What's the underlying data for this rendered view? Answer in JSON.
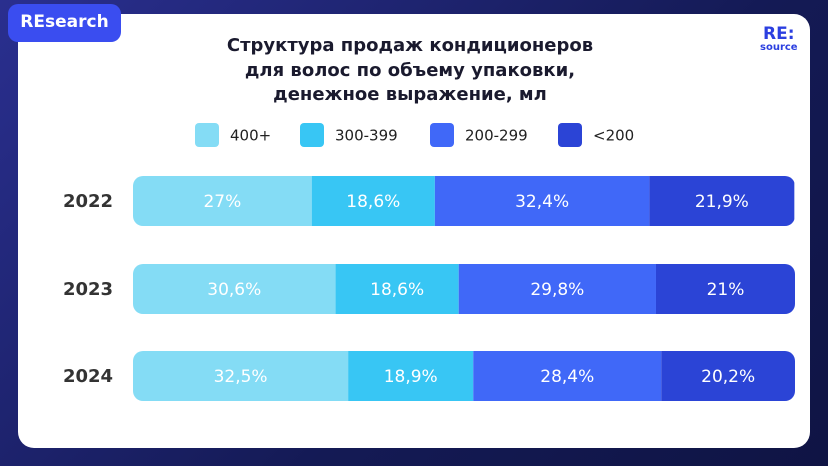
{
  "badge": "REsearch",
  "logo": {
    "main": "RE:",
    "sub": "source"
  },
  "chart_data": {
    "type": "stacked-bar-horizontal",
    "title": "Структура продаж кондиционеров\nдля волос по объему упаковки,\nденежное выражение, мл",
    "categories": [
      "2022",
      "2023",
      "2024"
    ],
    "xlim": [
      0,
      100
    ],
    "legend": "top",
    "series": [
      {
        "name": "400+",
        "color": "#84dcf5",
        "values": [
          27,
          30.6,
          32.5
        ],
        "value_labels": [
          "27%",
          "30,6%",
          "32,5%"
        ]
      },
      {
        "name": "300-399",
        "color": "#38c6f4",
        "values": [
          18.6,
          18.6,
          18.9
        ],
        "value_labels": [
          "18,6%",
          "18,6%",
          "18,9%"
        ]
      },
      {
        "name": "200-299",
        "color": "#4068f8",
        "values": [
          32.4,
          29.8,
          28.4
        ],
        "value_labels": [
          "32,4%",
          "29,8%",
          "28,4%"
        ]
      },
      {
        "name": "<200",
        "color": "#2b44d6",
        "values": [
          21.9,
          21,
          20.2
        ],
        "value_labels": [
          "21,9%",
          "21%",
          "20,2%"
        ]
      }
    ]
  }
}
